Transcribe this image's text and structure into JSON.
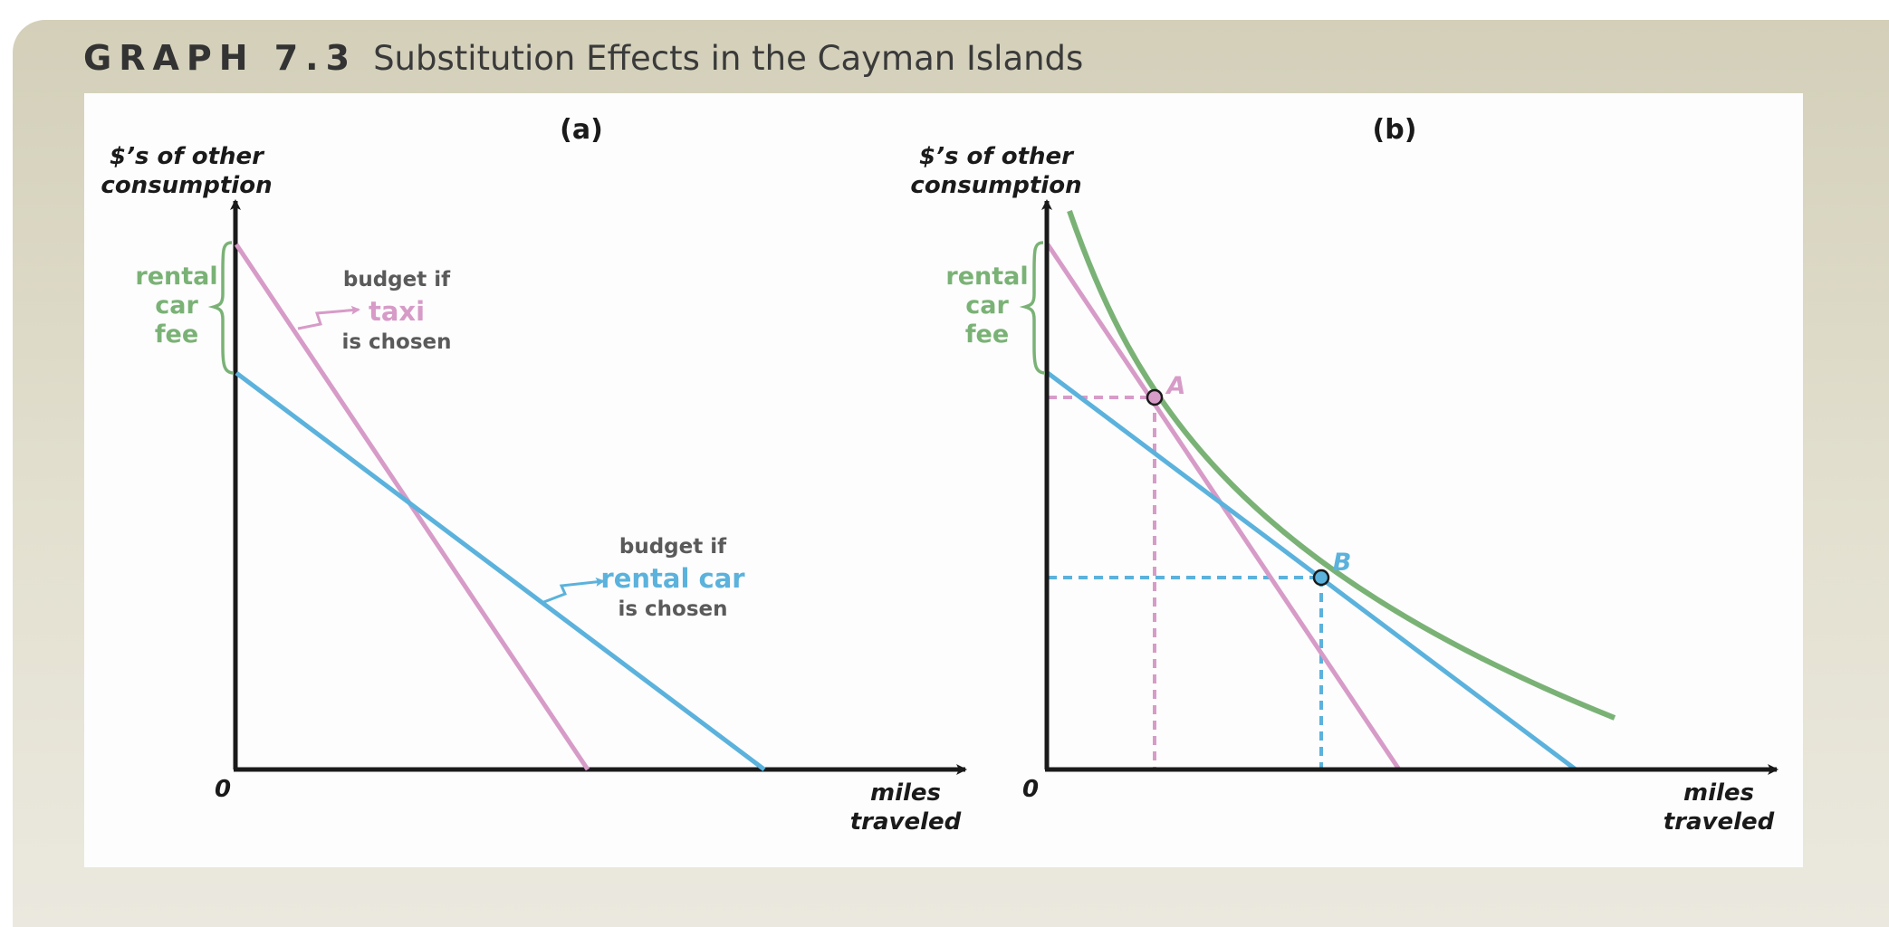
{
  "header": {
    "graph_label": "GRAPH 7.3",
    "title": "Substitution Effects in the Cayman Islands"
  },
  "colors": {
    "taxi_budget": "#d79bc8",
    "rental_car_budget": "#5bb2dc",
    "indifference_curve": "#7ab276",
    "axis": "#1a1a1a",
    "gray_text": "#5a5a5a"
  },
  "panels": [
    {
      "id": "a",
      "label": "(a)",
      "y_label_line1": "$’s of other",
      "y_label_line2": "consumption",
      "x_label_line1": "miles",
      "x_label_line2": "traveled",
      "origin_label": "0",
      "fee_label": [
        "rental",
        "car",
        "fee"
      ],
      "taxi_annotation": {
        "line1": "budget if",
        "line2": "taxi",
        "line3": "is chosen"
      },
      "rental_annotation": {
        "line1": "budget if",
        "line2": "rental car",
        "line3": "is chosen"
      }
    },
    {
      "id": "b",
      "label": "(b)",
      "y_label_line1": "$’s of other",
      "y_label_line2": "consumption",
      "x_label_line1": "miles",
      "x_label_line2": "traveled",
      "origin_label": "0",
      "fee_label": [
        "rental",
        "car",
        "fee"
      ],
      "point_a_label": "A",
      "point_b_label": "B"
    }
  ]
}
